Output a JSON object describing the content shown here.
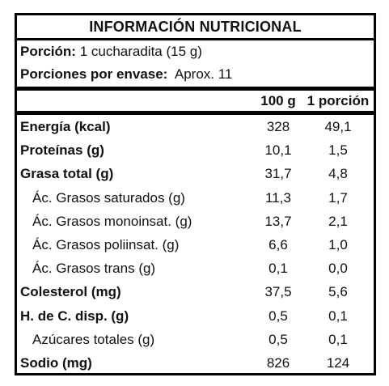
{
  "title": "INFORMACIÓN NUTRICIONAL",
  "portion": {
    "size_label": "Porción:",
    "size_value": "1 cucharadita (15 g)",
    "servings_label": "Porciones por envase:",
    "servings_value": "Aprox. 11"
  },
  "columns": {
    "per100": "100 g",
    "perPortion": "1 porción"
  },
  "rows": [
    {
      "name": "Energía (kcal)",
      "per100": "328",
      "perPortion": "49,1",
      "bold": true
    },
    {
      "name": "Proteínas (g)",
      "per100": "10,1",
      "perPortion": "1,5",
      "bold": true
    },
    {
      "name": "Grasa total (g)",
      "per100": "31,7",
      "perPortion": "4,8",
      "bold": true
    },
    {
      "name": "Ác. Grasos saturados (g)",
      "per100": "11,3",
      "perPortion": "1,7",
      "bold": false
    },
    {
      "name": "Ác. Grasos monoinsat. (g)",
      "per100": "13,7",
      "perPortion": "2,1",
      "bold": false
    },
    {
      "name": "Ác. Grasos poliinsat. (g)",
      "per100": "6,6",
      "perPortion": "1,0",
      "bold": false
    },
    {
      "name": "Ác. Grasos trans (g)",
      "per100": "0,1",
      "perPortion": "0,0",
      "bold": false
    },
    {
      "name": "Colesterol (mg)",
      "per100": "37,5",
      "perPortion": "5,6",
      "bold": true
    },
    {
      "name": "H. de C. disp. (g)",
      "per100": "0,5",
      "perPortion": "0,1",
      "bold": true
    },
    {
      "name": "Azúcares totales (g)",
      "per100": "0,5",
      "perPortion": "0,1",
      "bold": false
    },
    {
      "name": "Sodio (mg)",
      "per100": "826",
      "perPortion": "124",
      "bold": true
    }
  ]
}
